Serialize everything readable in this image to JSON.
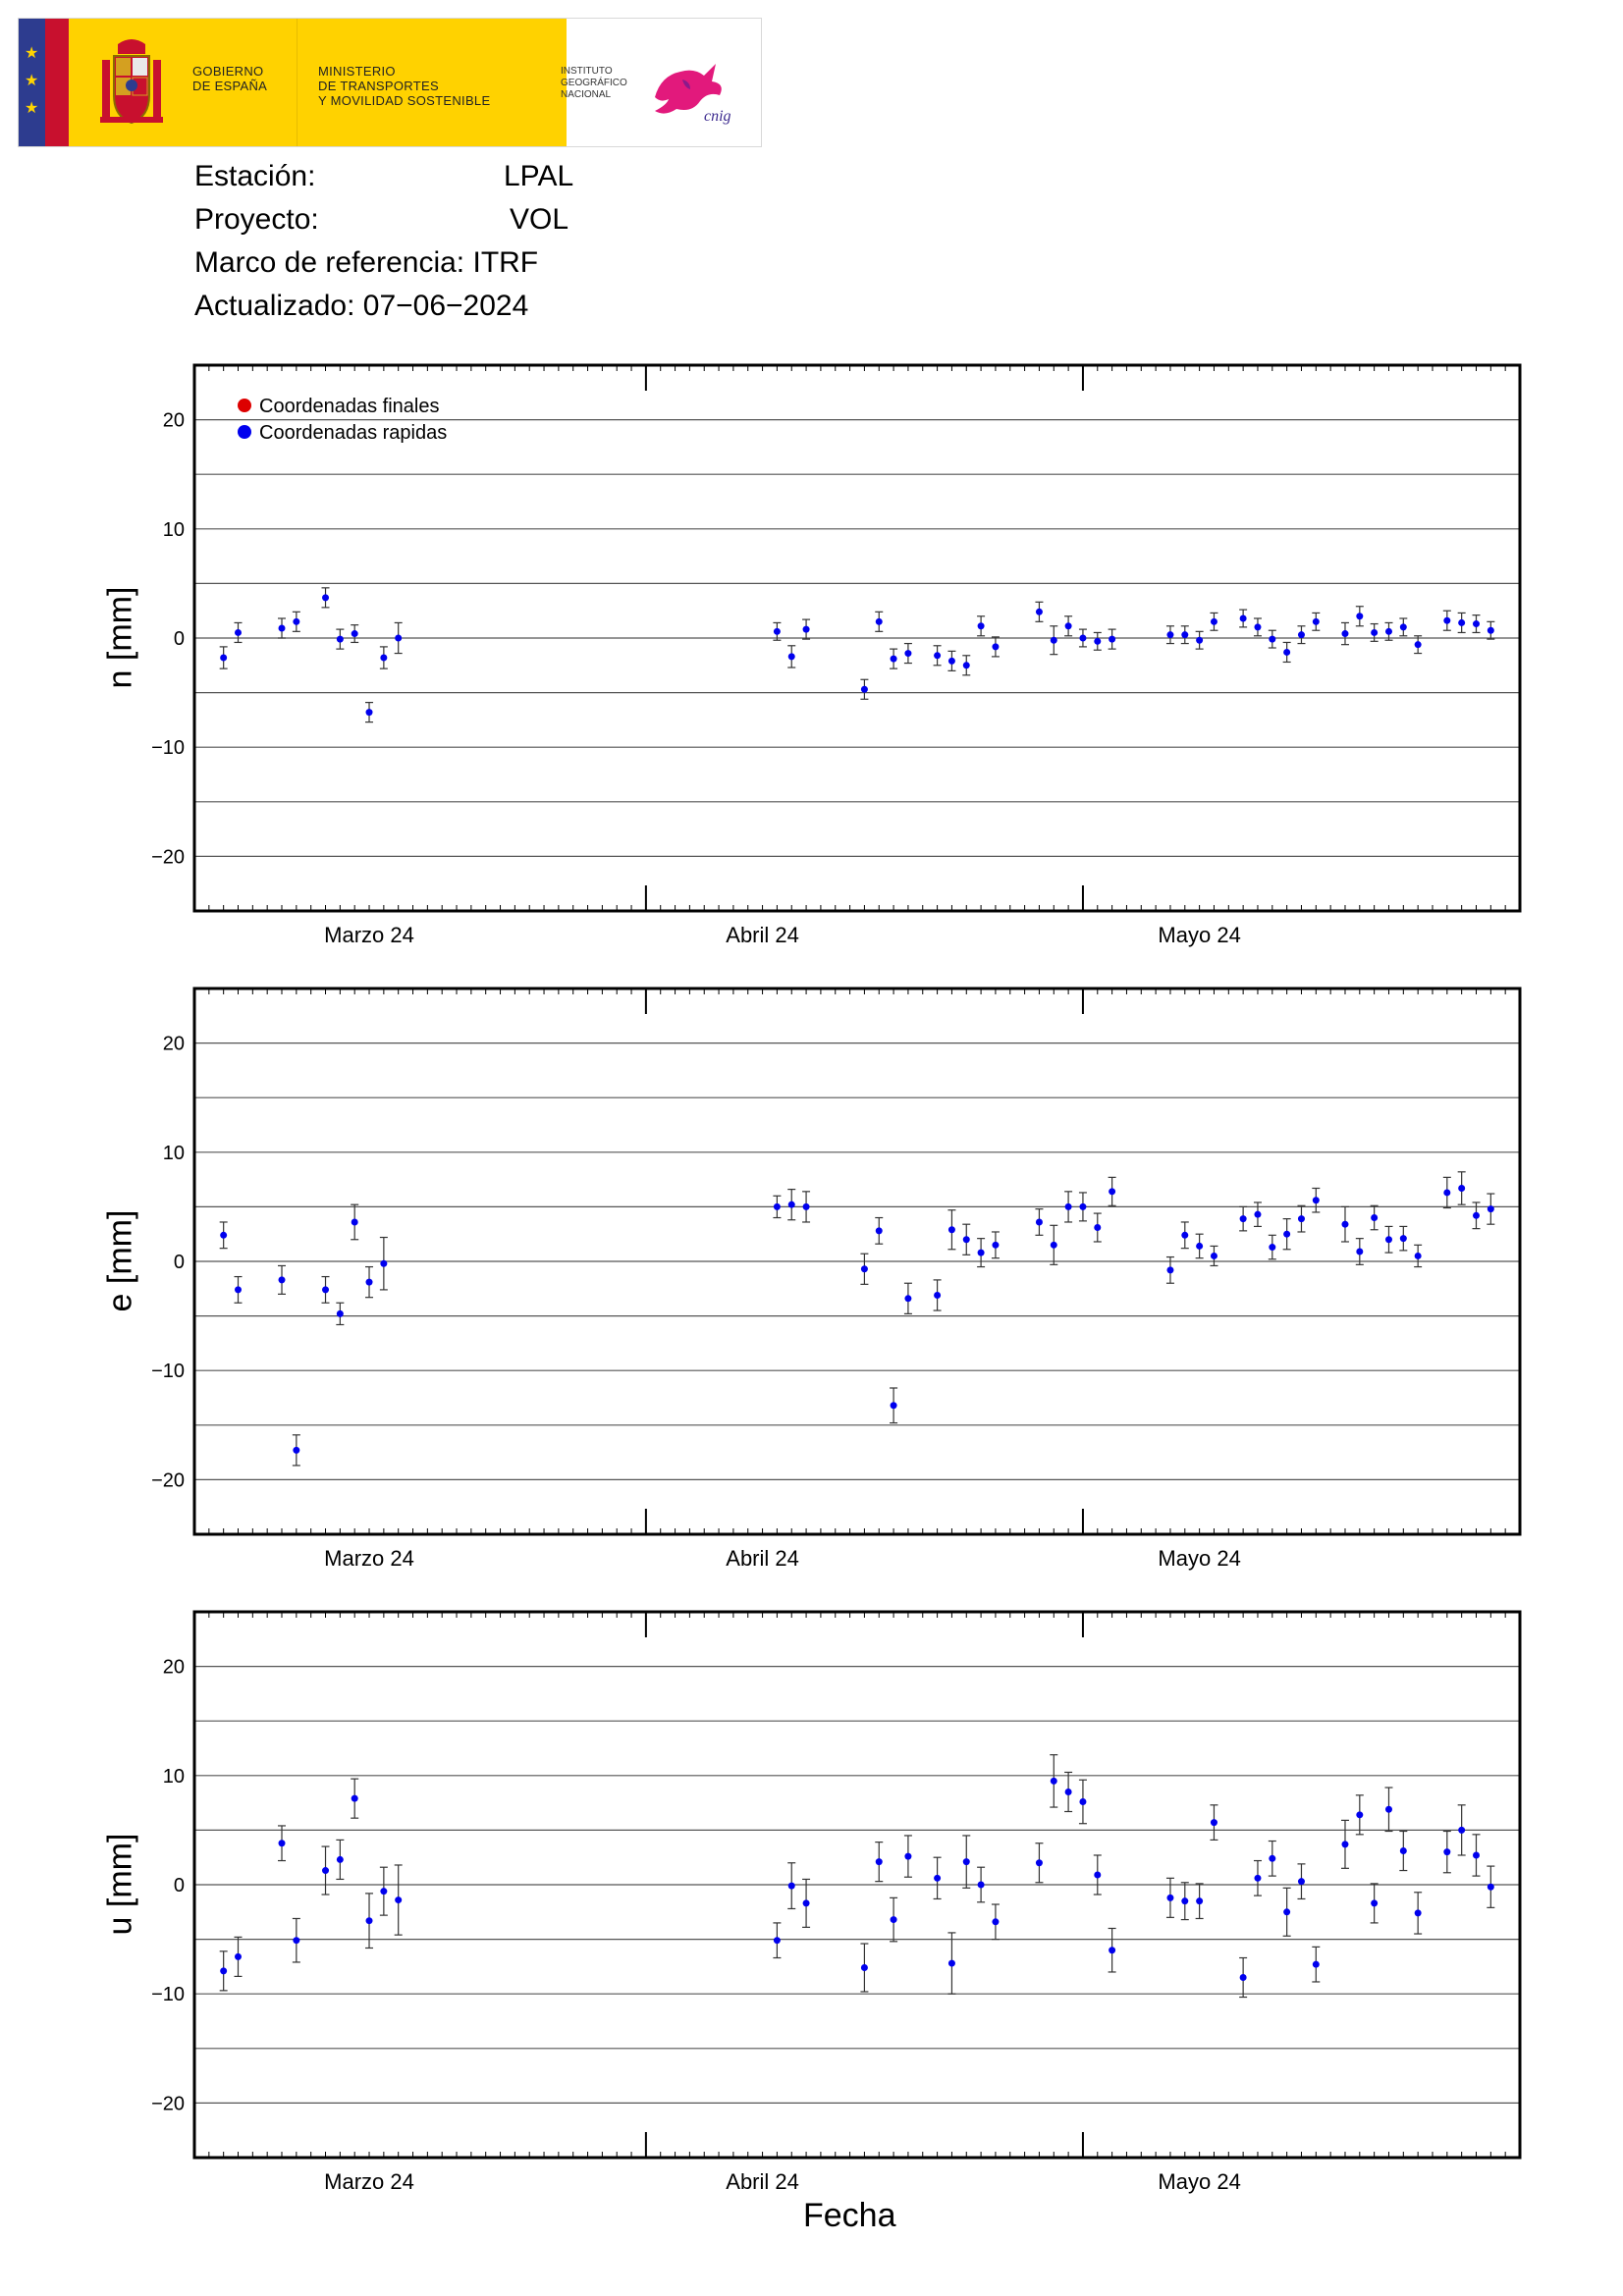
{
  "header": {
    "gov_line1": "GOBIERNO",
    "gov_line2": "DE ESPAÑA",
    "ministry_line1": "MINISTERIO",
    "ministry_line2": "DE TRANSPORTES",
    "ministry_line3": "Y MOVILIDAD SOSTENIBLE",
    "ign_line1": "INSTITUTO",
    "ign_line2": "GEOGRÁFICO",
    "ign_line3": "NACIONAL",
    "ign_logo_text": "cnig"
  },
  "info": {
    "station_label": "Estación:",
    "station_value": "LPAL",
    "project_label": "Proyecto:",
    "project_value": "VOL",
    "frame_label": "Marco de referencia:",
    "frame_value": "ITRF",
    "updated_label": "Actualizado:",
    "updated_value": "07−06−2024"
  },
  "legend": {
    "final_label": "Coordenadas finales",
    "rapid_label": "Coordenadas rapidas",
    "final_color": "#dd0000",
    "rapid_color": "#0000ee"
  },
  "x_axis_label": "Fecha",
  "chart_data": [
    {
      "type": "scatter",
      "ylabel": "n [mm]",
      "ylim": [
        -25,
        25
      ],
      "yticks": [
        -20,
        -10,
        0,
        10,
        20
      ],
      "x_range_days": [
        1,
        92
      ],
      "x_tick_labels": [
        {
          "label": "Marzo 24",
          "day": 13
        },
        {
          "label": "Abril 24",
          "day": 40
        },
        {
          "label": "Mayo 24",
          "day": 70
        }
      ],
      "legend": true,
      "series": [
        {
          "name": "Coordenadas rapidas",
          "points": [
            {
              "x": 3,
              "y": -1.8,
              "err": 1.0
            },
            {
              "x": 4,
              "y": 0.5,
              "err": 0.9
            },
            {
              "x": 7,
              "y": 0.9,
              "err": 0.9
            },
            {
              "x": 8,
              "y": 1.5,
              "err": 0.9
            },
            {
              "x": 10,
              "y": 3.7,
              "err": 0.9
            },
            {
              "x": 11,
              "y": -0.1,
              "err": 0.9
            },
            {
              "x": 12,
              "y": 0.4,
              "err": 0.8
            },
            {
              "x": 13,
              "y": -6.8,
              "err": 0.9
            },
            {
              "x": 14,
              "y": -1.8,
              "err": 1.0
            },
            {
              "x": 15,
              "y": 0.0,
              "err": 1.4
            },
            {
              "x": 41,
              "y": 0.6,
              "err": 0.8
            },
            {
              "x": 42,
              "y": -1.7,
              "err": 1.0
            },
            {
              "x": 43,
              "y": 0.8,
              "err": 0.9
            },
            {
              "x": 47,
              "y": -4.7,
              "err": 0.9
            },
            {
              "x": 48,
              "y": 1.5,
              "err": 0.9
            },
            {
              "x": 49,
              "y": -1.9,
              "err": 0.9
            },
            {
              "x": 50,
              "y": -1.4,
              "err": 0.9
            },
            {
              "x": 52,
              "y": -1.6,
              "err": 0.9
            },
            {
              "x": 53,
              "y": -2.1,
              "err": 0.9
            },
            {
              "x": 54,
              "y": -2.5,
              "err": 0.9
            },
            {
              "x": 55,
              "y": 1.1,
              "err": 0.9
            },
            {
              "x": 56,
              "y": -0.8,
              "err": 0.9
            },
            {
              "x": 59,
              "y": 2.4,
              "err": 0.9
            },
            {
              "x": 60,
              "y": -0.2,
              "err": 1.3
            },
            {
              "x": 61,
              "y": 1.1,
              "err": 0.9
            },
            {
              "x": 62,
              "y": 0.0,
              "err": 0.8
            },
            {
              "x": 63,
              "y": -0.3,
              "err": 0.8
            },
            {
              "x": 64,
              "y": -0.1,
              "err": 0.9
            },
            {
              "x": 68,
              "y": 0.3,
              "err": 0.8
            },
            {
              "x": 69,
              "y": 0.3,
              "err": 0.8
            },
            {
              "x": 70,
              "y": -0.2,
              "err": 0.8
            },
            {
              "x": 71,
              "y": 1.5,
              "err": 0.8
            },
            {
              "x": 73,
              "y": 1.8,
              "err": 0.8
            },
            {
              "x": 74,
              "y": 1.0,
              "err": 0.8
            },
            {
              "x": 75,
              "y": -0.1,
              "err": 0.8
            },
            {
              "x": 76,
              "y": -1.3,
              "err": 0.9
            },
            {
              "x": 77,
              "y": 0.3,
              "err": 0.8
            },
            {
              "x": 78,
              "y": 1.5,
              "err": 0.8
            },
            {
              "x": 80,
              "y": 0.4,
              "err": 1.0
            },
            {
              "x": 81,
              "y": 2.0,
              "err": 0.9
            },
            {
              "x": 82,
              "y": 0.5,
              "err": 0.8
            },
            {
              "x": 83,
              "y": 0.6,
              "err": 0.8
            },
            {
              "x": 84,
              "y": 1.0,
              "err": 0.8
            },
            {
              "x": 85,
              "y": -0.6,
              "err": 0.8
            },
            {
              "x": 87,
              "y": 1.6,
              "err": 0.9
            },
            {
              "x": 88,
              "y": 1.4,
              "err": 0.9
            },
            {
              "x": 89,
              "y": 1.3,
              "err": 0.8
            },
            {
              "x": 90,
              "y": 0.7,
              "err": 0.8
            }
          ]
        }
      ]
    },
    {
      "type": "scatter",
      "ylabel": "e [mm]",
      "ylim": [
        -25,
        25
      ],
      "yticks": [
        -20,
        -10,
        0,
        10,
        20
      ],
      "x_range_days": [
        1,
        92
      ],
      "x_tick_labels": [
        {
          "label": "Marzo 24",
          "day": 13
        },
        {
          "label": "Abril 24",
          "day": 40
        },
        {
          "label": "Mayo 24",
          "day": 70
        }
      ],
      "legend": false,
      "series": [
        {
          "name": "Coordenadas rapidas",
          "points": [
            {
              "x": 3,
              "y": 2.4,
              "err": 1.2
            },
            {
              "x": 4,
              "y": -2.6,
              "err": 1.2
            },
            {
              "x": 7,
              "y": -1.7,
              "err": 1.3
            },
            {
              "x": 8,
              "y": -17.3,
              "err": 1.4
            },
            {
              "x": 10,
              "y": -2.6,
              "err": 1.2
            },
            {
              "x": 11,
              "y": -4.8,
              "err": 1.0
            },
            {
              "x": 12,
              "y": 3.6,
              "err": 1.6
            },
            {
              "x": 13,
              "y": -1.9,
              "err": 1.4
            },
            {
              "x": 14,
              "y": -0.2,
              "err": 2.4
            },
            {
              "x": 41,
              "y": 5.0,
              "err": 1.0
            },
            {
              "x": 42,
              "y": 5.2,
              "err": 1.4
            },
            {
              "x": 43,
              "y": 5.0,
              "err": 1.4
            },
            {
              "x": 47,
              "y": -0.7,
              "err": 1.4
            },
            {
              "x": 48,
              "y": 2.8,
              "err": 1.2
            },
            {
              "x": 49,
              "y": -13.2,
              "err": 1.6
            },
            {
              "x": 50,
              "y": -3.4,
              "err": 1.4
            },
            {
              "x": 52,
              "y": -3.1,
              "err": 1.4
            },
            {
              "x": 53,
              "y": 2.9,
              "err": 1.8
            },
            {
              "x": 54,
              "y": 2.0,
              "err": 1.4
            },
            {
              "x": 55,
              "y": 0.8,
              "err": 1.3
            },
            {
              "x": 56,
              "y": 1.5,
              "err": 1.2
            },
            {
              "x": 59,
              "y": 3.6,
              "err": 1.2
            },
            {
              "x": 60,
              "y": 1.5,
              "err": 1.8
            },
            {
              "x": 61,
              "y": 5.0,
              "err": 1.4
            },
            {
              "x": 62,
              "y": 5.0,
              "err": 1.3
            },
            {
              "x": 63,
              "y": 3.1,
              "err": 1.3
            },
            {
              "x": 64,
              "y": 6.4,
              "err": 1.3
            },
            {
              "x": 68,
              "y": -0.8,
              "err": 1.2
            },
            {
              "x": 69,
              "y": 2.4,
              "err": 1.2
            },
            {
              "x": 70,
              "y": 1.4,
              "err": 1.1
            },
            {
              "x": 71,
              "y": 0.5,
              "err": 0.9
            },
            {
              "x": 73,
              "y": 3.9,
              "err": 1.1
            },
            {
              "x": 74,
              "y": 4.3,
              "err": 1.1
            },
            {
              "x": 75,
              "y": 1.3,
              "err": 1.1
            },
            {
              "x": 76,
              "y": 2.5,
              "err": 1.4
            },
            {
              "x": 77,
              "y": 3.9,
              "err": 1.2
            },
            {
              "x": 78,
              "y": 5.6,
              "err": 1.1
            },
            {
              "x": 80,
              "y": 3.4,
              "err": 1.6
            },
            {
              "x": 81,
              "y": 0.9,
              "err": 1.2
            },
            {
              "x": 82,
              "y": 4.0,
              "err": 1.1
            },
            {
              "x": 83,
              "y": 2.0,
              "err": 1.2
            },
            {
              "x": 84,
              "y": 2.1,
              "err": 1.1
            },
            {
              "x": 85,
              "y": 0.5,
              "err": 1.0
            },
            {
              "x": 87,
              "y": 6.3,
              "err": 1.4
            },
            {
              "x": 88,
              "y": 6.7,
              "err": 1.5
            },
            {
              "x": 89,
              "y": 4.2,
              "err": 1.2
            },
            {
              "x": 90,
              "y": 4.8,
              "err": 1.4
            }
          ]
        }
      ]
    },
    {
      "type": "scatter",
      "ylabel": "u [mm]",
      "ylim": [
        -25,
        25
      ],
      "yticks": [
        -20,
        -10,
        0,
        10,
        20
      ],
      "x_range_days": [
        1,
        92
      ],
      "x_tick_labels": [
        {
          "label": "Marzo 24",
          "day": 13
        },
        {
          "label": "Abril 24",
          "day": 40
        },
        {
          "label": "Mayo 24",
          "day": 70
        }
      ],
      "legend": false,
      "series": [
        {
          "name": "Coordenadas rapidas",
          "points": [
            {
              "x": 3,
              "y": -7.9,
              "err": 1.8
            },
            {
              "x": 4,
              "y": -6.6,
              "err": 1.8
            },
            {
              "x": 7,
              "y": 3.8,
              "err": 1.6
            },
            {
              "x": 8,
              "y": -5.1,
              "err": 2.0
            },
            {
              "x": 10,
              "y": 1.3,
              "err": 2.2
            },
            {
              "x": 11,
              "y": 2.3,
              "err": 1.8
            },
            {
              "x": 12,
              "y": 7.9,
              "err": 1.8
            },
            {
              "x": 13,
              "y": -3.3,
              "err": 2.5
            },
            {
              "x": 14,
              "y": -0.6,
              "err": 2.2
            },
            {
              "x": 15,
              "y": -1.4,
              "err": 3.2
            },
            {
              "x": 41,
              "y": -5.1,
              "err": 1.6
            },
            {
              "x": 42,
              "y": -0.1,
              "err": 2.1
            },
            {
              "x": 43,
              "y": -1.7,
              "err": 2.2
            },
            {
              "x": 47,
              "y": -7.6,
              "err": 2.2
            },
            {
              "x": 48,
              "y": 2.1,
              "err": 1.8
            },
            {
              "x": 49,
              "y": -3.2,
              "err": 2.0
            },
            {
              "x": 50,
              "y": 2.6,
              "err": 1.9
            },
            {
              "x": 52,
              "y": 0.6,
              "err": 1.9
            },
            {
              "x": 53,
              "y": -7.2,
              "err": 2.8
            },
            {
              "x": 54,
              "y": 2.1,
              "err": 2.4
            },
            {
              "x": 55,
              "y": 0.0,
              "err": 1.6
            },
            {
              "x": 56,
              "y": -3.4,
              "err": 1.6
            },
            {
              "x": 59,
              "y": 2.0,
              "err": 1.8
            },
            {
              "x": 60,
              "y": 9.5,
              "err": 2.4
            },
            {
              "x": 61,
              "y": 8.5,
              "err": 1.8
            },
            {
              "x": 62,
              "y": 7.6,
              "err": 2.0
            },
            {
              "x": 63,
              "y": 0.9,
              "err": 1.8
            },
            {
              "x": 64,
              "y": -6.0,
              "err": 2.0
            },
            {
              "x": 68,
              "y": -1.2,
              "err": 1.8
            },
            {
              "x": 69,
              "y": -1.5,
              "err": 1.7
            },
            {
              "x": 70,
              "y": -1.5,
              "err": 1.6
            },
            {
              "x": 71,
              "y": 5.7,
              "err": 1.6
            },
            {
              "x": 73,
              "y": -8.5,
              "err": 1.8
            },
            {
              "x": 74,
              "y": 0.6,
              "err": 1.6
            },
            {
              "x": 75,
              "y": 2.4,
              "err": 1.6
            },
            {
              "x": 76,
              "y": -2.5,
              "err": 2.2
            },
            {
              "x": 77,
              "y": 0.3,
              "err": 1.6
            },
            {
              "x": 78,
              "y": -7.3,
              "err": 1.6
            },
            {
              "x": 80,
              "y": 3.7,
              "err": 2.2
            },
            {
              "x": 81,
              "y": 6.4,
              "err": 1.8
            },
            {
              "x": 82,
              "y": -1.7,
              "err": 1.8
            },
            {
              "x": 83,
              "y": 6.9,
              "err": 2.0
            },
            {
              "x": 84,
              "y": 3.1,
              "err": 1.8
            },
            {
              "x": 85,
              "y": -2.6,
              "err": 1.9
            },
            {
              "x": 87,
              "y": 3.0,
              "err": 1.9
            },
            {
              "x": 88,
              "y": 5.0,
              "err": 2.3
            },
            {
              "x": 89,
              "y": 2.7,
              "err": 1.9
            },
            {
              "x": 90,
              "y": -0.2,
              "err": 1.9
            }
          ]
        }
      ]
    }
  ]
}
